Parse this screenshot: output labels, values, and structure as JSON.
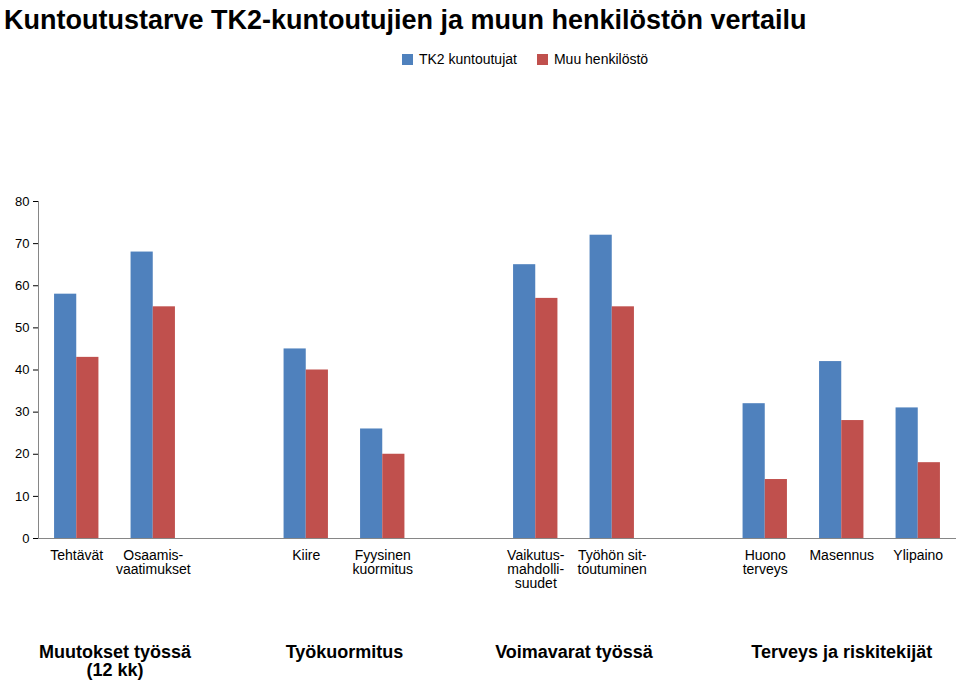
{
  "chart_data": {
    "type": "bar",
    "title": "Kuntoutustarve TK2-kuntoutujien ja muun henkilöstön vertailu",
    "categories": [
      "Tehtävät",
      "Osaamis-\nvaatimukset",
      null,
      "Kiire",
      "Fyysinen\nkuormitus",
      null,
      "Vaikutus-\nmahdolli-\nsuudet",
      "Työhön sit-\ntoutuminen",
      null,
      "Huono\nterveys",
      "Masennus",
      "Ylipaino"
    ],
    "series": [
      {
        "name": "TK2 kuntoutujat",
        "color": "#4f81bd",
        "values": [
          58,
          68,
          null,
          45,
          26,
          null,
          65,
          72,
          null,
          32,
          42,
          31
        ]
      },
      {
        "name": "Muu henkilöstö",
        "color": "#c0504d",
        "values": [
          43,
          55,
          null,
          40,
          20,
          null,
          57,
          55,
          null,
          14,
          28,
          18
        ]
      }
    ],
    "groups": [
      {
        "label": "Muutokset työssä\n(12 kk)",
        "members": [
          "Tehtävät",
          "Osaamis-\nvaatimukset"
        ]
      },
      {
        "label": "Työkuormitus",
        "members": [
          "Kiire",
          "Fyysinen\nkuormitus"
        ]
      },
      {
        "label": "Voimavarat työssä",
        "members": [
          "Vaikutus-\nmahdolli-\nsuudet",
          "Työhön sit-\ntoutuminen"
        ]
      },
      {
        "label": "Terveys ja riskitekijät",
        "members": [
          "Huono\nterveys",
          "Masennus",
          "Ylipaino"
        ]
      }
    ],
    "ylim": [
      0,
      80
    ],
    "yticks": [
      0,
      10,
      20,
      30,
      40,
      50,
      60,
      70,
      80
    ],
    "grid": false,
    "legend": "top"
  }
}
